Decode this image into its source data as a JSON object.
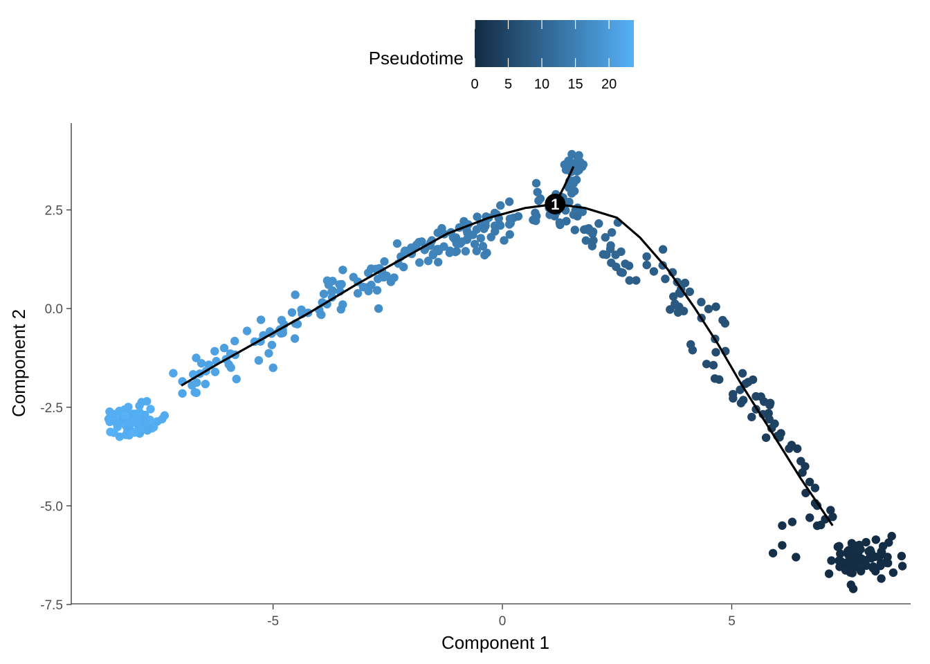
{
  "chart_data": {
    "type": "scatter",
    "title": "",
    "xlabel": "Component 1",
    "ylabel": "Component 2",
    "xlim": [
      -9.4,
      8.9
    ],
    "ylim": [
      -7.5,
      4.7
    ],
    "x_ticks": [
      -5,
      0,
      5
    ],
    "y_ticks": [
      -7.5,
      -5.0,
      -2.5,
      0.0,
      2.5
    ],
    "x_tick_labels": [
      "-5",
      "0",
      "5"
    ],
    "y_tick_labels": [
      "-7.5",
      "-5.0",
      "-2.5",
      "0.0",
      "2.5"
    ],
    "grid": false,
    "legend": {
      "title": "Pseudotime",
      "placement": "top",
      "type": "colorbar",
      "range": [
        0,
        23.7
      ],
      "ticks": [
        0,
        5,
        10,
        15,
        20
      ],
      "tick_labels": [
        "0",
        "5",
        "10",
        "15",
        "20"
      ],
      "color_low": "#132B43",
      "color_high": "#56B1F7"
    },
    "trajectory": {
      "color": "#000000",
      "main_path": [
        [
          7.2,
          -5.5
        ],
        [
          6.5,
          -4.3
        ],
        [
          5.8,
          -3.0
        ],
        [
          5.2,
          -1.9
        ],
        [
          4.7,
          -0.9
        ],
        [
          4.2,
          0.0
        ],
        [
          3.6,
          1.0
        ],
        [
          3.0,
          1.8
        ],
        [
          2.5,
          2.3
        ],
        [
          1.8,
          2.55
        ],
        [
          1.15,
          2.65
        ],
        [
          0.5,
          2.55
        ],
        [
          -0.3,
          2.3
        ],
        [
          -1.2,
          1.9
        ],
        [
          -2.2,
          1.25
        ],
        [
          -3.2,
          0.6
        ],
        [
          -4.2,
          -0.1
        ],
        [
          -5.2,
          -0.75
        ],
        [
          -6.2,
          -1.4
        ],
        [
          -7.0,
          -1.95
        ]
      ],
      "branch_path": [
        [
          1.15,
          2.65
        ],
        [
          1.35,
          3.1
        ],
        [
          1.55,
          3.6
        ]
      ],
      "branch_point": {
        "x": 1.15,
        "y": 2.65,
        "label": "1"
      }
    },
    "segments": [
      {
        "from": [
          7.9,
          -6.4
        ],
        "to": [
          7.9,
          -6.4
        ],
        "n": 75,
        "jitter": [
          0.35,
          0.3
        ],
        "pseudotime": [
          0.0,
          0.6
        ]
      },
      {
        "from": [
          7.2,
          -5.5
        ],
        "to": [
          4.2,
          0.0
        ],
        "n": 55,
        "jitter": [
          0.25,
          0.28
        ],
        "pseudotime": [
          0.6,
          7.5
        ]
      },
      {
        "from": [
          4.2,
          0.0
        ],
        "to": [
          1.15,
          2.65
        ],
        "n": 60,
        "jitter": [
          0.25,
          0.22
        ],
        "pseudotime": [
          7.5,
          12.5
        ]
      },
      {
        "from": [
          1.15,
          2.65
        ],
        "to": [
          1.65,
          3.95
        ],
        "n": 35,
        "jitter": [
          0.13,
          0.12
        ],
        "pseudotime": [
          12.5,
          14.0
        ]
      },
      {
        "from": [
          1.15,
          2.65
        ],
        "to": [
          -2.2,
          1.25
        ],
        "n": 95,
        "jitter": [
          0.25,
          0.25
        ],
        "pseudotime": [
          12.5,
          16.5
        ]
      },
      {
        "from": [
          -2.2,
          1.25
        ],
        "to": [
          -7.0,
          -1.95
        ],
        "n": 95,
        "jitter": [
          0.25,
          0.22
        ],
        "pseudotime": [
          16.5,
          22.0
        ]
      },
      {
        "from": [
          -8.0,
          -2.85
        ],
        "to": [
          -8.0,
          -2.85
        ],
        "n": 80,
        "jitter": [
          0.28,
          0.17
        ],
        "pseudotime": [
          22.5,
          23.7
        ]
      }
    ],
    "extra_points": [
      {
        "x": -5.0,
        "y": -1.5,
        "pseudotime": 20.0
      },
      {
        "x": -2.7,
        "y": 0.0,
        "pseudotime": 17.0
      },
      {
        "x": 3.5,
        "y": 1.5,
        "pseudotime": 9.0
      },
      {
        "x": 6.1,
        "y": -5.5,
        "pseudotime": 1.0
      },
      {
        "x": 6.1,
        "y": -6.0,
        "pseudotime": 0.8
      },
      {
        "x": 5.9,
        "y": -6.2,
        "pseudotime": 0.7
      },
      {
        "x": 6.6,
        "y": -4.0,
        "pseudotime": 2.5
      },
      {
        "x": 6.4,
        "y": -6.3,
        "pseudotime": 0.5
      },
      {
        "x": 6.7,
        "y": -5.3,
        "pseudotime": 1.5
      },
      {
        "x": 7.6,
        "y": -7.0,
        "pseudotime": 0.2
      }
    ]
  }
}
